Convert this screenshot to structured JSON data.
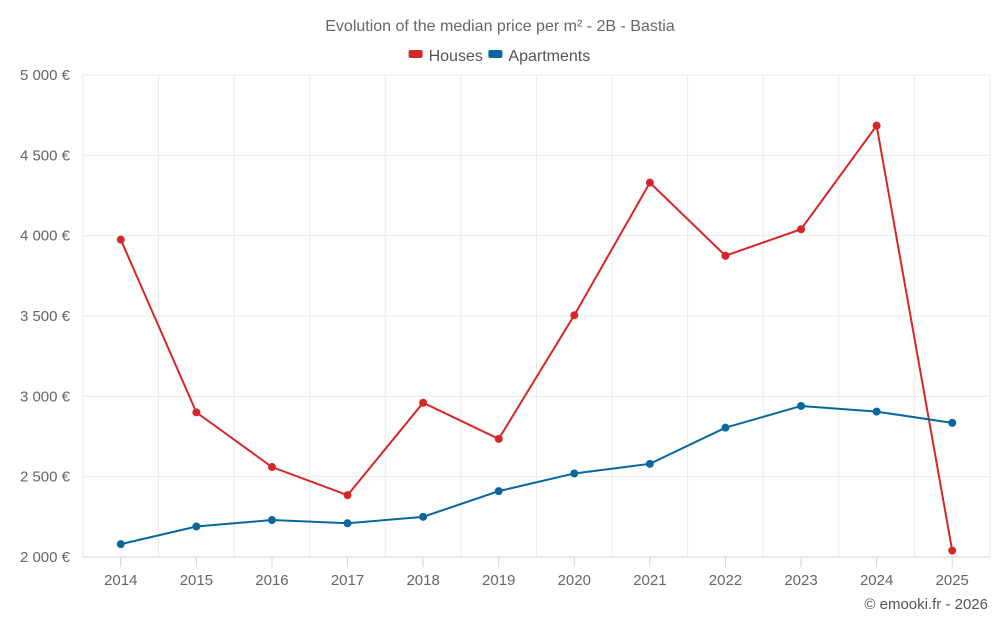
{
  "chart_data": {
    "type": "line",
    "title": "Evolution of the median price per m² - 2B - Bastia",
    "credit": "© emooki.fr - 2026",
    "categories": [
      "2014",
      "2015",
      "2016",
      "2017",
      "2018",
      "2019",
      "2020",
      "2021",
      "2022",
      "2023",
      "2024",
      "2025"
    ],
    "ylim": [
      2000,
      5000
    ],
    "yticks": [
      {
        "value": 2000,
        "label": "2 000 €"
      },
      {
        "value": 2500,
        "label": "2 500 €"
      },
      {
        "value": 3000,
        "label": "3 000 €"
      },
      {
        "value": 3500,
        "label": "3 500 €"
      },
      {
        "value": 4000,
        "label": "4 000 €"
      },
      {
        "value": 4500,
        "label": "4 500 €"
      },
      {
        "value": 5000,
        "label": "5 000 €"
      }
    ],
    "legend_position": "top-center",
    "grid": true,
    "series": [
      {
        "name": "Houses",
        "color": "#d62728",
        "values": [
          3975,
          2900,
          2560,
          2385,
          2960,
          2735,
          3505,
          4330,
          3875,
          4040,
          4685,
          2040
        ]
      },
      {
        "name": "Apartments",
        "color": "#08679c",
        "values": [
          2080,
          2190,
          2230,
          2210,
          2250,
          2410,
          2520,
          2580,
          2805,
          2940,
          2905,
          2835
        ]
      }
    ]
  }
}
